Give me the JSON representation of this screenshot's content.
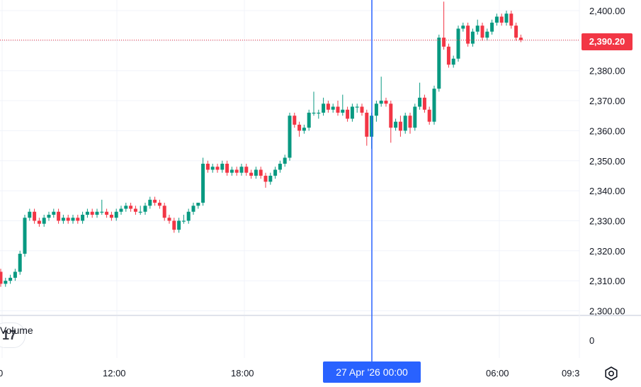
{
  "chart_data": {
    "type": "candlestick",
    "last_price_label": "2,390.20",
    "last_price": 2390.2,
    "y_ticks": [
      {
        "v": 2400,
        "label": "2,400.00"
      },
      {
        "v": 2390,
        "label": "2,390.00"
      },
      {
        "v": 2380,
        "label": "2,380.00"
      },
      {
        "v": 2370,
        "label": "2,370.00"
      },
      {
        "v": 2360,
        "label": "2,360.00"
      },
      {
        "v": 2350,
        "label": "2,350.00"
      },
      {
        "v": 2340,
        "label": "2,340.00"
      },
      {
        "v": 2330,
        "label": "2,330.00"
      },
      {
        "v": 2320,
        "label": "2,320.00"
      },
      {
        "v": 2310,
        "label": "2,310.00"
      },
      {
        "v": 2300,
        "label": "2,300.00"
      }
    ],
    "ylim": [
      2300,
      2400
    ],
    "volume_pane": {
      "label": "Volume",
      "y_tick": "0"
    },
    "x_ticks": [
      "0",
      "12:00",
      "18:00",
      "06:00",
      "09:3"
    ],
    "crosshair_label": "27 Apr '26   00:00",
    "colors": {
      "up": "#089981",
      "down": "#f23645",
      "crosshair": "#2962ff",
      "grid": "#f0f3fa"
    },
    "candles": [
      [
        2313,
        2309,
        2314,
        2308
      ],
      [
        2309,
        2310,
        2311,
        2308
      ],
      [
        2310,
        2311,
        2312,
        2309
      ],
      [
        2311,
        2313,
        2314,
        2310
      ],
      [
        2313,
        2319,
        2320,
        2312
      ],
      [
        2319,
        2331,
        2332,
        2318
      ],
      [
        2331,
        2333,
        2334,
        2330
      ],
      [
        2333,
        2330,
        2334,
        2329
      ],
      [
        2330,
        2329,
        2331,
        2328
      ],
      [
        2329,
        2331,
        2332,
        2328
      ],
      [
        2331,
        2332,
        2333,
        2330
      ],
      [
        2332,
        2333,
        2334,
        2331
      ],
      [
        2333,
        2330,
        2334,
        2329
      ],
      [
        2330,
        2331,
        2332,
        2329
      ],
      [
        2331,
        2330,
        2332,
        2329
      ],
      [
        2330,
        2331,
        2332,
        2329
      ],
      [
        2331,
        2330,
        2332,
        2329
      ],
      [
        2330,
        2332,
        2333,
        2329
      ],
      [
        2332,
        2333,
        2334,
        2331
      ],
      [
        2333,
        2332,
        2334,
        2331
      ],
      [
        2332,
        2333,
        2334,
        2331
      ],
      [
        2333,
        2333,
        2337,
        2332
      ],
      [
        2333,
        2332,
        2334,
        2331
      ],
      [
        2332,
        2331,
        2333,
        2330
      ],
      [
        2331,
        2333,
        2334,
        2330
      ],
      [
        2333,
        2334,
        2335,
        2332
      ],
      [
        2334,
        2335,
        2336,
        2333
      ],
      [
        2335,
        2334,
        2336,
        2333
      ],
      [
        2334,
        2333,
        2335,
        2332
      ],
      [
        2333,
        2333,
        2335,
        2332
      ],
      [
        2333,
        2335,
        2336,
        2332
      ],
      [
        2335,
        2337,
        2338,
        2334
      ],
      [
        2337,
        2336,
        2338,
        2335
      ],
      [
        2336,
        2335,
        2337,
        2334
      ],
      [
        2335,
        2331,
        2336,
        2330
      ],
      [
        2331,
        2330,
        2332,
        2329
      ],
      [
        2330,
        2327,
        2331,
        2326
      ],
      [
        2327,
        2330,
        2331,
        2326
      ],
      [
        2330,
        2330,
        2332,
        2329
      ],
      [
        2330,
        2333,
        2334,
        2329
      ],
      [
        2333,
        2335,
        2336,
        2332
      ],
      [
        2335,
        2336,
        2336,
        2334
      ],
      [
        2336,
        2349,
        2351,
        2335
      ],
      [
        2349,
        2347,
        2350,
        2346
      ],
      [
        2347,
        2348,
        2349,
        2346
      ],
      [
        2348,
        2347,
        2349,
        2346
      ],
      [
        2347,
        2349,
        2350,
        2346
      ],
      [
        2349,
        2346,
        2350,
        2345
      ],
      [
        2346,
        2347,
        2348,
        2345
      ],
      [
        2347,
        2346,
        2348,
        2345
      ],
      [
        2346,
        2348,
        2349,
        2345
      ],
      [
        2348,
        2346,
        2349,
        2345
      ],
      [
        2346,
        2345,
        2347,
        2344
      ],
      [
        2345,
        2347,
        2348,
        2344
      ],
      [
        2347,
        2345,
        2348,
        2344
      ],
      [
        2345,
        2343,
        2346,
        2341
      ],
      [
        2343,
        2345,
        2346,
        2342
      ],
      [
        2345,
        2347,
        2348,
        2344
      ],
      [
        2347,
        2349,
        2350,
        2346
      ],
      [
        2349,
        2351,
        2352,
        2348
      ],
      [
        2351,
        2365,
        2366,
        2350
      ],
      [
        2365,
        2362,
        2366,
        2361
      ],
      [
        2362,
        2360,
        2363,
        2358
      ],
      [
        2360,
        2361,
        2362,
        2359
      ],
      [
        2361,
        2366,
        2367,
        2360
      ],
      [
        2366,
        2366,
        2373,
        2365
      ],
      [
        2366,
        2366,
        2367,
        2364
      ],
      [
        2366,
        2369,
        2371,
        2365
      ],
      [
        2369,
        2367,
        2370,
        2366
      ],
      [
        2367,
        2368,
        2369,
        2366
      ],
      [
        2368,
        2366,
        2370,
        2365
      ],
      [
        2366,
        2367,
        2372,
        2365
      ],
      [
        2367,
        2364,
        2368,
        2363
      ],
      [
        2364,
        2368,
        2369,
        2363
      ],
      [
        2368,
        2368,
        2369,
        2366
      ],
      [
        2368,
        2366,
        2369,
        2365
      ],
      [
        2366,
        2358,
        2367,
        2355
      ],
      [
        2358,
        2365,
        2366,
        2354
      ],
      [
        2365,
        2369,
        2370,
        2363
      ],
      [
        2369,
        2370,
        2378,
        2368
      ],
      [
        2370,
        2369,
        2371,
        2368
      ],
      [
        2369,
        2361,
        2370,
        2356
      ],
      [
        2361,
        2363,
        2364,
        2360
      ],
      [
        2363,
        2360,
        2365,
        2358
      ],
      [
        2360,
        2365,
        2366,
        2359
      ],
      [
        2365,
        2361,
        2366,
        2359
      ],
      [
        2361,
        2368,
        2369,
        2360
      ],
      [
        2368,
        2371,
        2376,
        2367
      ],
      [
        2371,
        2367,
        2372,
        2366
      ],
      [
        2367,
        2363,
        2368,
        2362
      ],
      [
        2363,
        2374,
        2375,
        2362
      ],
      [
        2374,
        2391,
        2392,
        2373
      ],
      [
        2391,
        2388,
        2403,
        2387
      ],
      [
        2388,
        2382,
        2389,
        2381
      ],
      [
        2382,
        2384,
        2385,
        2381
      ],
      [
        2384,
        2394,
        2395,
        2383
      ],
      [
        2394,
        2395,
        2396,
        2393
      ],
      [
        2395,
        2389,
        2396,
        2388
      ],
      [
        2389,
        2393,
        2394,
        2388
      ],
      [
        2393,
        2395,
        2397,
        2392
      ],
      [
        2395,
        2391,
        2396,
        2390
      ],
      [
        2391,
        2393,
        2394,
        2390
      ],
      [
        2393,
        2396,
        2397,
        2392
      ],
      [
        2396,
        2398,
        2399,
        2395
      ],
      [
        2398,
        2396,
        2399,
        2395
      ],
      [
        2396,
        2399,
        2400,
        2395
      ],
      [
        2399,
        2395,
        2400,
        2394
      ],
      [
        2395,
        2391,
        2396,
        2390
      ],
      [
        2391,
        2390.2,
        2392,
        2389.5
      ]
    ]
  }
}
